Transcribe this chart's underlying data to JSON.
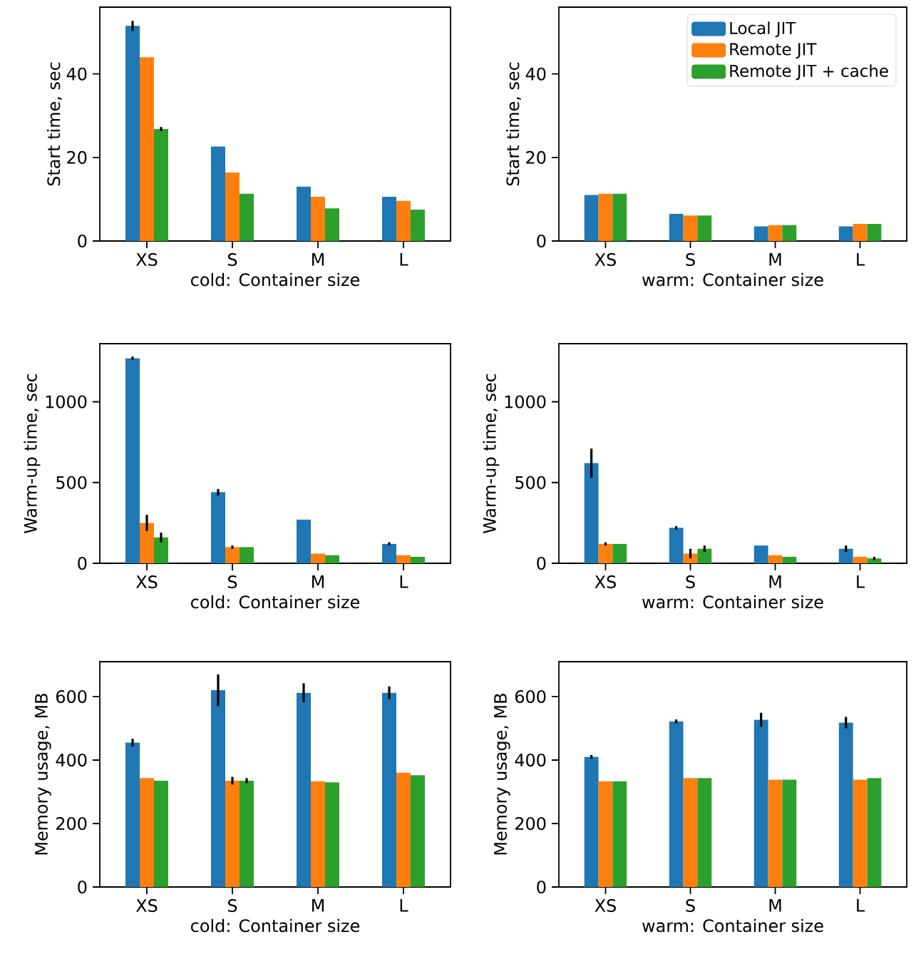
{
  "chart_data": [
    {
      "type": "bar",
      "xlabel": "cold: Container size",
      "ylabel": "Start time, sec",
      "categories": [
        "XS",
        "S",
        "M",
        "L"
      ],
      "ylim": [
        0,
        56
      ],
      "yticks": [
        0,
        20,
        40
      ],
      "legend": false,
      "series": [
        {
          "color": "#1f77b4",
          "values": [
            51.5,
            22.6,
            13,
            10.6
          ],
          "errors": [
            1.2,
            null,
            null,
            null
          ]
        },
        {
          "color": "#ff7f0e",
          "values": [
            44,
            16.4,
            10.6,
            9.6
          ]
        },
        {
          "color": "#2ca02c",
          "values": [
            26.8,
            11.3,
            7.8,
            7.5
          ],
          "errors": [
            0.5,
            null,
            null,
            null
          ]
        }
      ]
    },
    {
      "type": "bar",
      "xlabel": "warm: Container size",
      "ylabel": "Start time, sec",
      "categories": [
        "XS",
        "S",
        "M",
        "L"
      ],
      "ylim": [
        0,
        56
      ],
      "yticks": [
        0,
        20,
        40
      ],
      "legend": "top right",
      "series": [
        {
          "name": "Local JIT",
          "color": "#1f77b4",
          "values": [
            11,
            6.5,
            3.5,
            3.5
          ]
        },
        {
          "name": "Remote JIT",
          "color": "#ff7f0e",
          "values": [
            11.3,
            6.1,
            3.8,
            4.1
          ]
        },
        {
          "name": "Remote JIT + cache",
          "color": "#2ca02c",
          "values": [
            11.3,
            6.1,
            3.8,
            4.1
          ]
        }
      ]
    },
    {
      "type": "bar",
      "xlabel": "cold: Container size",
      "ylabel": "Warm-up time, sec",
      "categories": [
        "XS",
        "S",
        "M",
        "L"
      ],
      "ylim": [
        0,
        1360
      ],
      "yticks": [
        0,
        500,
        1000
      ],
      "legend": false,
      "series": [
        {
          "color": "#1f77b4",
          "values": [
            1270,
            440,
            270,
            120
          ],
          "errors": [
            10,
            20,
            null,
            10
          ]
        },
        {
          "color": "#ff7f0e",
          "values": [
            250,
            100,
            60,
            50
          ],
          "errors": [
            50,
            10,
            null,
            null
          ]
        },
        {
          "color": "#2ca02c",
          "values": [
            160,
            100,
            50,
            40
          ],
          "errors": [
            30,
            null,
            null,
            null
          ]
        }
      ]
    },
    {
      "type": "bar",
      "xlabel": "warm: Container size",
      "ylabel": "Warm-up time, sec",
      "categories": [
        "XS",
        "S",
        "M",
        "L"
      ],
      "ylim": [
        0,
        1360
      ],
      "yticks": [
        0,
        500,
        1000
      ],
      "legend": false,
      "series": [
        {
          "color": "#1f77b4",
          "values": [
            620,
            220,
            110,
            90
          ],
          "errors": [
            90,
            10,
            null,
            20
          ]
        },
        {
          "color": "#ff7f0e",
          "values": [
            120,
            60,
            50,
            40
          ],
          "errors": [
            10,
            30,
            null,
            null
          ]
        },
        {
          "color": "#2ca02c",
          "values": [
            120,
            90,
            40,
            30
          ],
          "errors": [
            null,
            20,
            null,
            10
          ]
        }
      ]
    },
    {
      "type": "bar",
      "xlabel": "cold: Container size",
      "ylabel": "Memory usage, MB",
      "categories": [
        "XS",
        "S",
        "M",
        "L"
      ],
      "ylim": [
        0,
        710
      ],
      "yticks": [
        0,
        200,
        400,
        600
      ],
      "legend": false,
      "series": [
        {
          "color": "#1f77b4",
          "values": [
            455,
            620,
            612,
            612
          ],
          "errors": [
            12,
            50,
            30,
            20
          ]
        },
        {
          "color": "#ff7f0e",
          "values": [
            343,
            335,
            333,
            360
          ],
          "errors": [
            null,
            12,
            null,
            null
          ]
        },
        {
          "color": "#2ca02c",
          "values": [
            335,
            335,
            330,
            352
          ],
          "errors": [
            null,
            8,
            null,
            null
          ]
        }
      ]
    },
    {
      "type": "bar",
      "xlabel": "warm: Container size",
      "ylabel": "Memory usage, MB",
      "categories": [
        "XS",
        "S",
        "M",
        "L"
      ],
      "ylim": [
        0,
        710
      ],
      "yticks": [
        0,
        200,
        400,
        600
      ],
      "legend": false,
      "series": [
        {
          "color": "#1f77b4",
          "values": [
            410,
            522,
            527,
            518
          ],
          "errors": [
            6,
            6,
            22,
            18
          ]
        },
        {
          "color": "#ff7f0e",
          "values": [
            333,
            343,
            338,
            338
          ]
        },
        {
          "color": "#2ca02c",
          "values": [
            333,
            343,
            338,
            343
          ]
        }
      ]
    }
  ]
}
